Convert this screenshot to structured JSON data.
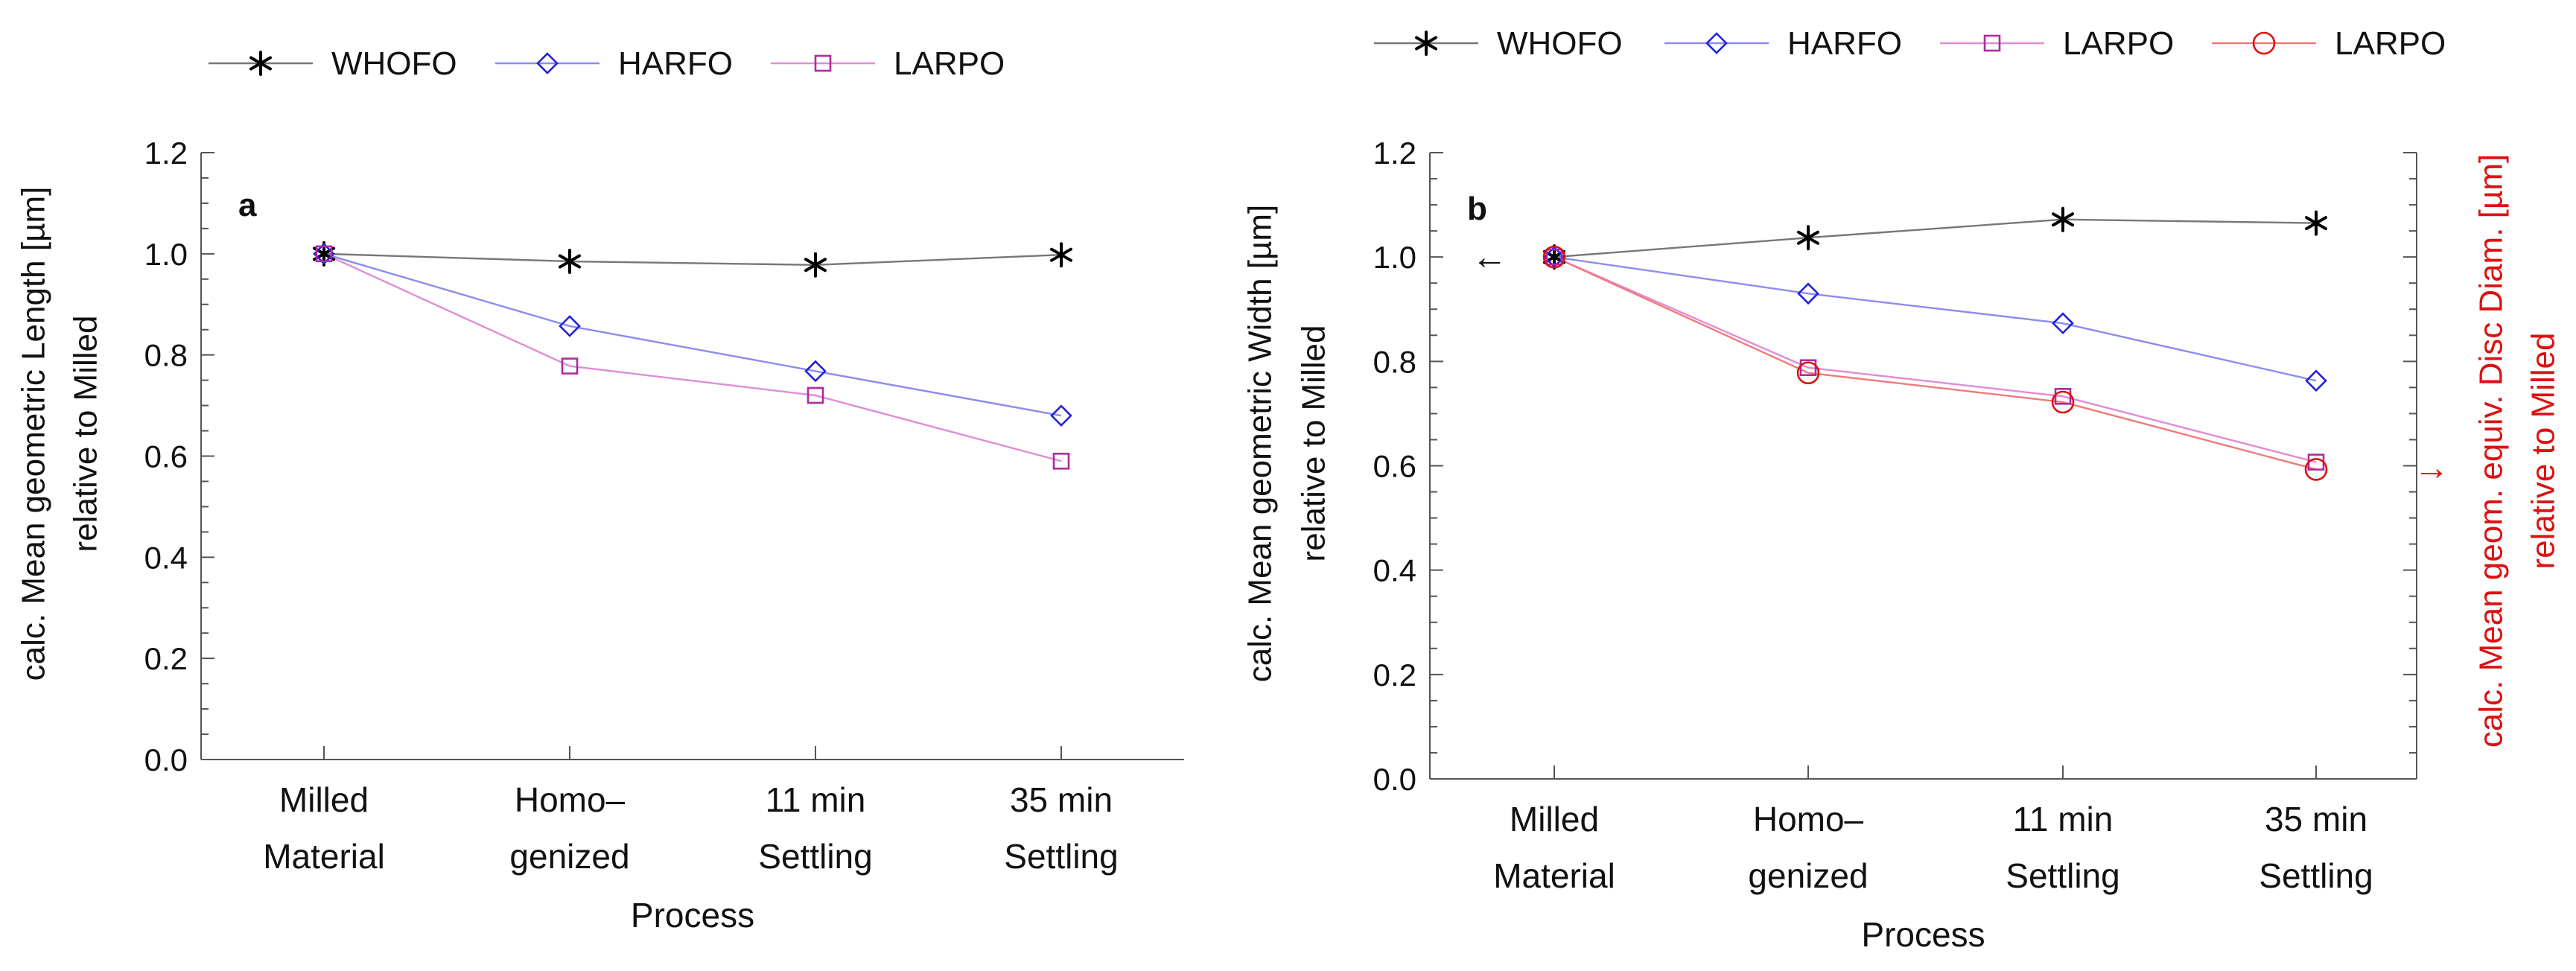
{
  "chart_data": [
    {
      "type": "line",
      "panel_label": "a",
      "categories": [
        [
          "Milled",
          "Material"
        ],
        [
          "Homo–",
          "genized"
        ],
        [
          "11 min",
          "Settling"
        ],
        [
          "35 min",
          "Settling"
        ]
      ],
      "xlabel": "Process",
      "ylabel": [
        "calc. Mean geometric Length [µm]",
        "relative to Milled"
      ],
      "ylim": [
        0,
        1.2
      ],
      "yticks": [
        "0.0",
        "0.2",
        "0.4",
        "0.6",
        "0.8",
        "1.0",
        "1.2"
      ],
      "yticks_values": [
        0,
        0.2,
        0.4,
        0.6,
        0.8,
        1.0,
        1.2
      ],
      "legend_position": "top",
      "series": [
        {
          "name": "WHOFO",
          "values": [
            1.0,
            0.985,
            0.978,
            0.998
          ],
          "color": "#000000",
          "line_color": "#777777",
          "marker": "asterisk"
        },
        {
          "name": "HARFO",
          "values": [
            1.0,
            0.857,
            0.768,
            0.68
          ],
          "color": "#2222dd",
          "line_color": "#8c8cf0",
          "marker": "diamond"
        },
        {
          "name": "LARPO",
          "values": [
            1.0,
            0.778,
            0.72,
            0.59
          ],
          "color": "#b02a9e",
          "line_color": "#e08cd6",
          "marker": "square"
        }
      ]
    },
    {
      "type": "line",
      "panel_label": "b",
      "categories": [
        [
          "Milled",
          "Material"
        ],
        [
          "Homo–",
          "genized"
        ],
        [
          "11 min",
          "Settling"
        ],
        [
          "35 min",
          "Settling"
        ]
      ],
      "xlabel": "Process",
      "ylabel": [
        "calc. Mean geometric Width [µm]",
        "relative to Milled"
      ],
      "ylabel_right": [
        "calc. Mean geom. equiv. Disc Diam. [µm]",
        "relative to Milled"
      ],
      "ylabel_right_color": "#dd1111",
      "left_arrow": "←",
      "right_arrow": "→",
      "ylim": [
        0,
        1.2
      ],
      "yticks": [
        "0.0",
        "0.2",
        "0.4",
        "0.6",
        "0.8",
        "1.0",
        "1.2"
      ],
      "yticks_values": [
        0,
        0.2,
        0.4,
        0.6,
        0.8,
        1.0,
        1.2
      ],
      "legend_position": "top",
      "series": [
        {
          "name": "WHOFO",
          "values": [
            1.0,
            1.037,
            1.072,
            1.065
          ],
          "color": "#000000",
          "line_color": "#777777",
          "marker": "asterisk"
        },
        {
          "name": "HARFO",
          "values": [
            1.0,
            0.93,
            0.873,
            0.763
          ],
          "color": "#2222dd",
          "line_color": "#8c8cf0",
          "marker": "diamond"
        },
        {
          "name": "LARPO",
          "values": [
            1.0,
            0.788,
            0.733,
            0.607
          ],
          "color": "#b02a9e",
          "line_color": "#e08cd6",
          "marker": "square"
        },
        {
          "name": "LARPO",
          "values": [
            1.0,
            0.778,
            0.722,
            0.593
          ],
          "color": "#dd1111",
          "line_color": "#f07a7a",
          "marker": "circle"
        }
      ]
    }
  ]
}
